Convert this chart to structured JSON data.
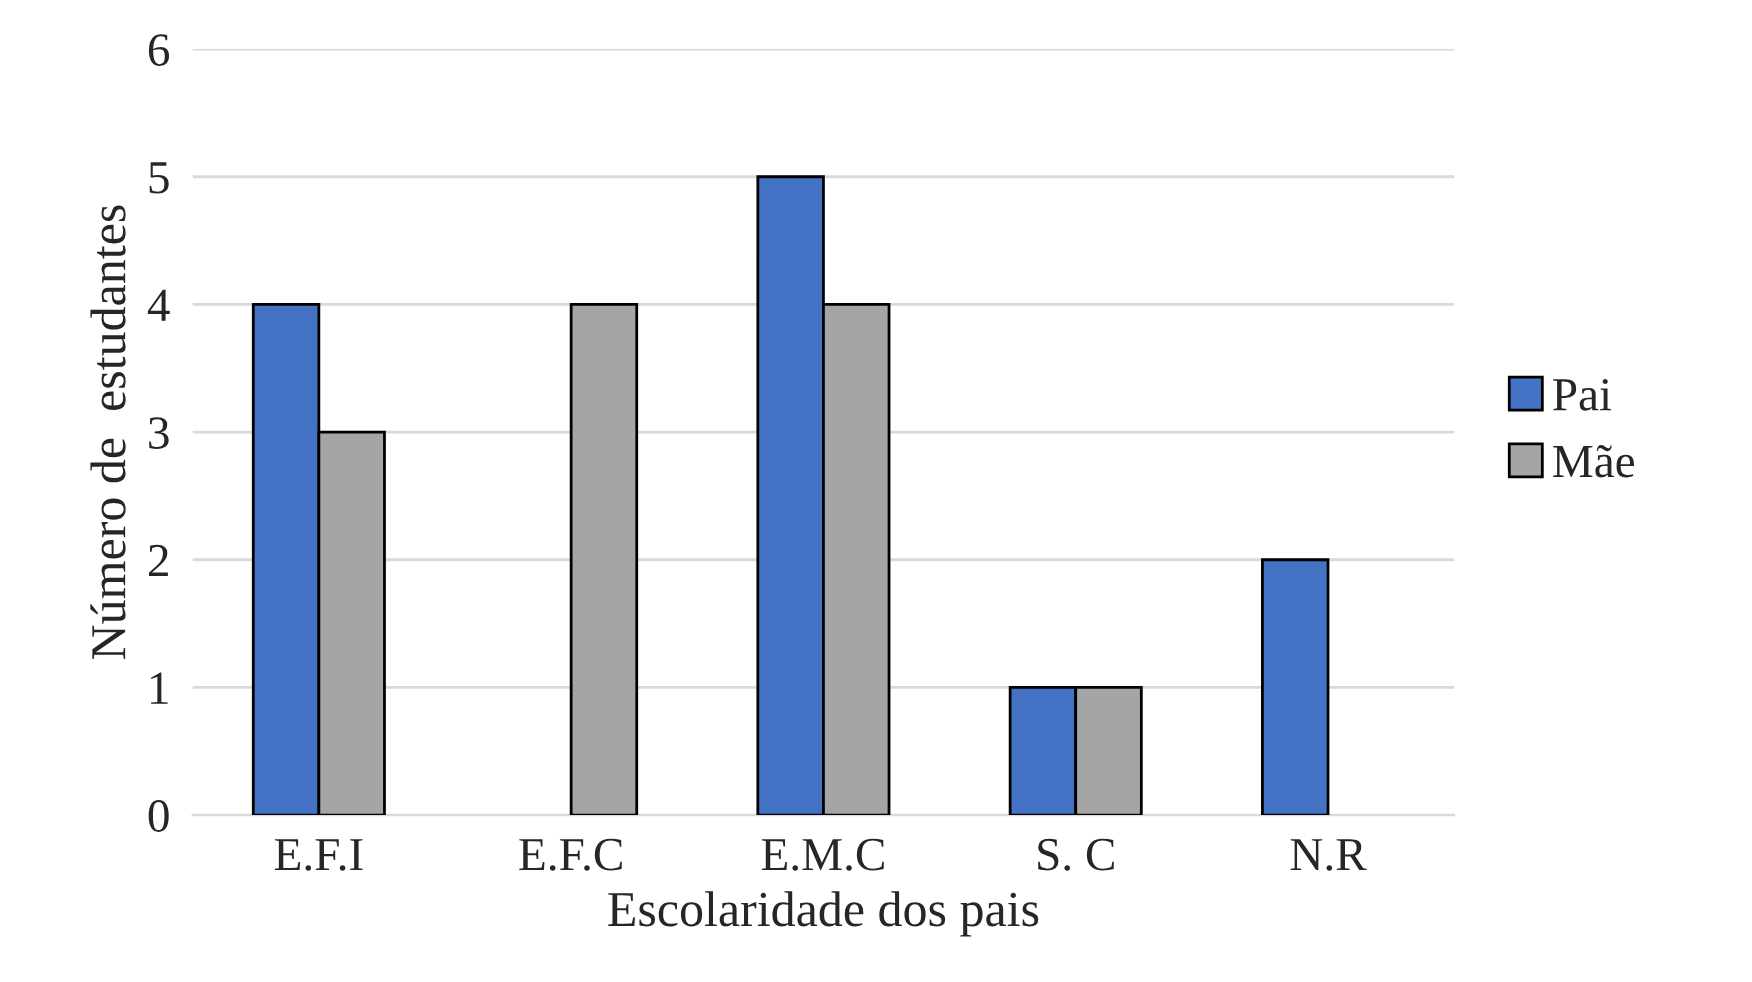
{
  "chart_data": {
    "type": "bar",
    "xlabel": "Escolaridade dos pais",
    "ylabel": "Número de  estudantes",
    "categories": [
      "E.F.I",
      "E.F.C",
      "E.M.C",
      "S. C",
      "N.R"
    ],
    "series": [
      {
        "name": "Pai",
        "color": "#4472c4",
        "values": [
          4,
          0,
          5,
          1,
          2
        ]
      },
      {
        "name": "Mãe",
        "color": "#a5a5a5",
        "values": [
          3,
          4,
          4,
          1,
          0
        ]
      }
    ],
    "ylim": [
      0,
      6
    ],
    "yticks": [
      0,
      1,
      2,
      3,
      4,
      5,
      6
    ],
    "grid": "y",
    "legend": "right"
  }
}
